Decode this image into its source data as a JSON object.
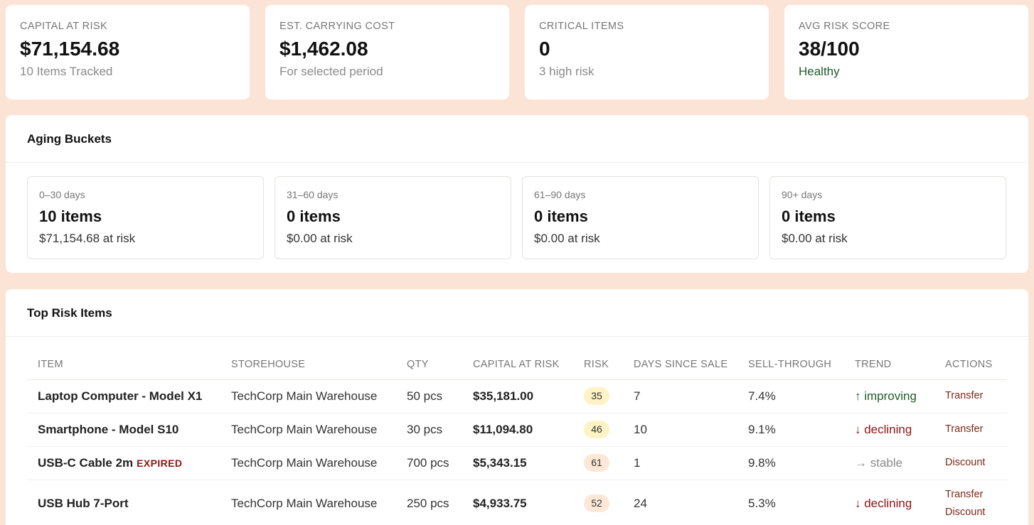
{
  "kpis": [
    {
      "label": "CAPITAL AT RISK",
      "value": "$71,154.68",
      "sub": "10 Items Tracked"
    },
    {
      "label": "EST. CARRYING COST",
      "value": "$1,462.08",
      "sub": "For selected period"
    },
    {
      "label": "CRITICAL ITEMS",
      "value": "0",
      "sub": "3 high risk"
    },
    {
      "label": "AVG RISK SCORE",
      "value": "38/100",
      "sub": "Healthy"
    }
  ],
  "aging": {
    "title": "Aging Buckets",
    "buckets": [
      {
        "range": "0–30 days",
        "items": "10 items",
        "risk": "$71,154.68 at risk"
      },
      {
        "range": "31–60 days",
        "items": "0 items",
        "risk": "$0.00 at risk"
      },
      {
        "range": "61–90 days",
        "items": "0 items",
        "risk": "$0.00 at risk"
      },
      {
        "range": "90+ days",
        "items": "0 items",
        "risk": "$0.00 at risk"
      }
    ]
  },
  "risk_items": {
    "title": "Top Risk Items",
    "columns": [
      "ITEM",
      "STOREHOUSE",
      "QTY",
      "CAPITAL AT RISK",
      "RISK",
      "DAYS SINCE SALE",
      "SELL-THROUGH",
      "TREND",
      "ACTIONS"
    ],
    "rows": [
      {
        "item": "Laptop Computer - Model X1",
        "flag": "",
        "storehouse": "TechCorp Main Warehouse",
        "qty": "50 pcs",
        "capital": "$35,181.00",
        "risk": "35",
        "risk_color": "#fdf3c4",
        "days": "7",
        "sell_through": "7.4%",
        "trend": "↑ improving",
        "trend_type": "up",
        "actions": [
          "Transfer"
        ]
      },
      {
        "item": "Smartphone - Model S10",
        "flag": "",
        "storehouse": "TechCorp Main Warehouse",
        "qty": "30 pcs",
        "capital": "$11,094.80",
        "risk": "46",
        "risk_color": "#fdf3c4",
        "days": "10",
        "sell_through": "9.1%",
        "trend": "↓ declining",
        "trend_type": "down",
        "actions": [
          "Transfer"
        ]
      },
      {
        "item": "USB-C Cable 2m",
        "flag": "EXPIRED",
        "storehouse": "TechCorp Main Warehouse",
        "qty": "700 pcs",
        "capital": "$5,343.15",
        "risk": "61",
        "risk_color": "#fde8d8",
        "days": "1",
        "sell_through": "9.8%",
        "trend": "→ stable",
        "trend_type": "flat",
        "actions": [
          "Discount"
        ]
      },
      {
        "item": "USB Hub 7-Port",
        "flag": "",
        "storehouse": "TechCorp Main Warehouse",
        "qty": "250 pcs",
        "capital": "$4,933.75",
        "risk": "52",
        "risk_color": "#fde8d8",
        "days": "24",
        "sell_through": "5.3%",
        "trend": "↓ declining",
        "trend_type": "down",
        "actions": [
          "Transfer",
          "Discount"
        ]
      }
    ]
  }
}
